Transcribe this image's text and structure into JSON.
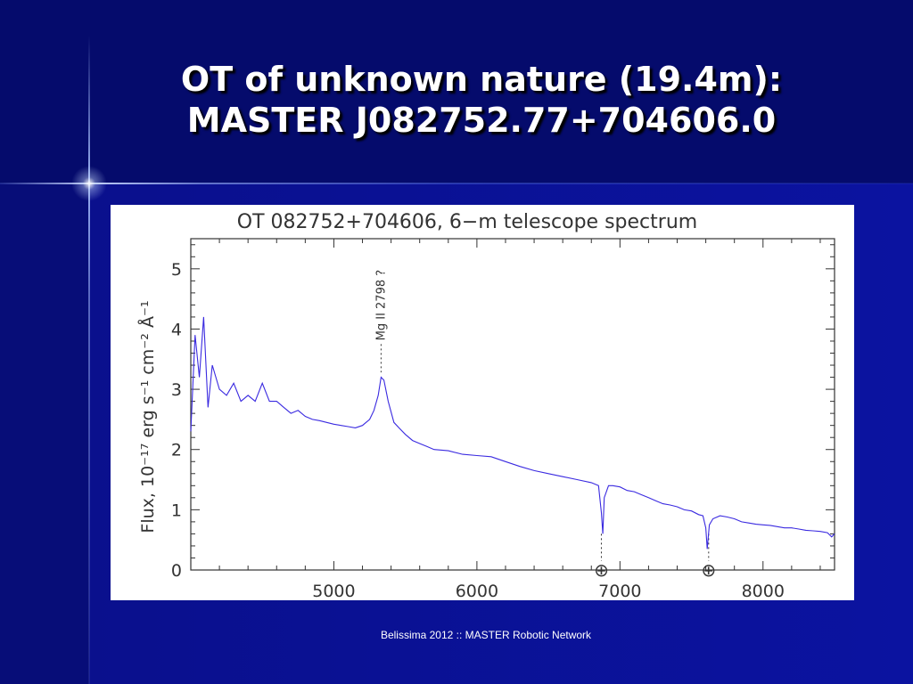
{
  "slide": {
    "title_line1": "OT of unknown nature (19.4m):",
    "title_line2": "MASTER J082752.77+704606.0",
    "footer": "Belissima 2012 :: MASTER Robotic Network"
  },
  "colors": {
    "title_band": "#050b6c",
    "background": "#0a0f86",
    "spectrum_line": "#3a2ae0",
    "axis": "#333333"
  },
  "chart_data": {
    "type": "line",
    "title": "OT 082752+704606, 6−m telescope  spectrum",
    "xlabel": "",
    "ylabel": "Flux, 10⁻¹⁷ erg s⁻¹ cm⁻² Å⁻¹",
    "xlim": [
      4000,
      8500
    ],
    "ylim": [
      0,
      5.5
    ],
    "x_ticks": [
      "5000",
      "6000",
      "7000",
      "8000"
    ],
    "y_ticks": [
      "0",
      "1",
      "2",
      "3",
      "4",
      "5"
    ],
    "grid": false,
    "series": [
      {
        "x": [
          4000,
          4030,
          4060,
          4090,
          4120,
          4150,
          4200,
          4250,
          4300,
          4350,
          4400,
          4450,
          4500,
          4550,
          4600,
          4650,
          4700,
          4750,
          4800,
          4850,
          4900,
          4950,
          5000,
          5050,
          5100,
          5150,
          5200,
          5250,
          5280,
          5310,
          5330,
          5350,
          5380,
          5420,
          5460,
          5500,
          5550,
          5600,
          5650,
          5700,
          5800,
          5900,
          6000,
          6100,
          6200,
          6300,
          6400,
          6500,
          6600,
          6700,
          6800,
          6850,
          6870,
          6880,
          6890,
          6920,
          6950,
          7000,
          7050,
          7100,
          7150,
          7200,
          7250,
          7300,
          7350,
          7400,
          7450,
          7500,
          7550,
          7580,
          7600,
          7610,
          7625,
          7650,
          7700,
          7750,
          7800,
          7850,
          7900,
          7950,
          8000,
          8050,
          8100,
          8150,
          8200,
          8250,
          8300,
          8350,
          8400,
          8450,
          8480,
          8500
        ],
        "y": [
          2.3,
          3.9,
          3.2,
          4.2,
          2.7,
          3.4,
          3.0,
          2.9,
          3.1,
          2.8,
          2.9,
          2.8,
          3.1,
          2.8,
          2.8,
          2.7,
          2.6,
          2.65,
          2.55,
          2.5,
          2.48,
          2.45,
          2.42,
          2.4,
          2.38,
          2.36,
          2.4,
          2.5,
          2.65,
          2.9,
          3.2,
          3.15,
          2.8,
          2.45,
          2.35,
          2.25,
          2.15,
          2.1,
          2.05,
          2.0,
          1.98,
          1.92,
          1.9,
          1.88,
          1.8,
          1.72,
          1.65,
          1.6,
          1.55,
          1.5,
          1.45,
          1.4,
          0.95,
          0.6,
          1.2,
          1.4,
          1.4,
          1.38,
          1.32,
          1.3,
          1.25,
          1.2,
          1.15,
          1.1,
          1.08,
          1.05,
          1.0,
          0.98,
          0.92,
          0.9,
          0.7,
          0.35,
          0.75,
          0.85,
          0.9,
          0.88,
          0.85,
          0.8,
          0.78,
          0.76,
          0.75,
          0.74,
          0.72,
          0.7,
          0.7,
          0.68,
          0.66,
          0.65,
          0.64,
          0.62,
          0.55,
          0.6
        ]
      }
    ],
    "annotations": [
      {
        "text": "Mg II 2798 ?",
        "x": 5330,
        "y": 3.25
      },
      {
        "text": "⊕",
        "x": 6870,
        "y": 0.0
      },
      {
        "text": "⊕",
        "x": 7620,
        "y": 0.0
      }
    ]
  }
}
